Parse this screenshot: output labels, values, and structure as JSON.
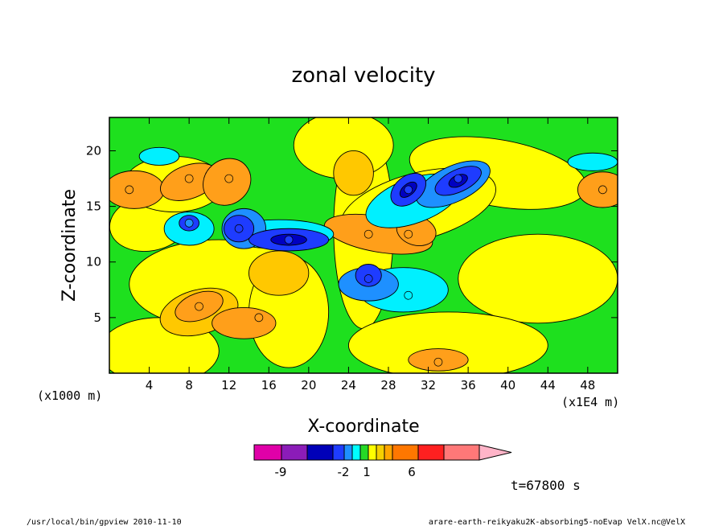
{
  "chart_data": {
    "type": "heatmap",
    "title": "zonal velocity",
    "xlabel": "X-coordinate",
    "ylabel": "Z-coordinate",
    "x_units": "(x1E4 m)",
    "y_units": "(x1000 m)",
    "x_ticks": [
      4,
      8,
      12,
      16,
      20,
      24,
      28,
      32,
      36,
      40,
      44,
      48
    ],
    "y_ticks": [
      5,
      10,
      15,
      20
    ],
    "xlim": [
      0,
      51
    ],
    "ylim": [
      0,
      23
    ],
    "colorbar": {
      "labels": [
        "-9",
        "-2",
        "1",
        "6"
      ],
      "colors": [
        "#e000a8",
        "#8b1cb8",
        "#0000b8",
        "#1e3cff",
        "#1e90ff",
        "#00ffff",
        "#26d926",
        "#ffff00",
        "#f5d000",
        "#ffa500",
        "#ff7700",
        "#ff2020",
        "#ff7878",
        "#ffb4c8"
      ]
    },
    "field_colors": {
      "green": "#1ee01e",
      "yellow": "#ffff00",
      "gold": "#ffc800",
      "orange": "#ff9f1a",
      "cyan": "#00f0ff",
      "lightblue": "#1e90ff",
      "blue": "#1e3cff",
      "navy": "#0000c0"
    },
    "features": [
      {
        "x": 2,
        "z": 16.5,
        "color": "orange"
      },
      {
        "x": 8,
        "z": 17.5,
        "color": "orange"
      },
      {
        "x": 12,
        "z": 17.5,
        "color": "orange"
      },
      {
        "x": 8,
        "z": 13.5,
        "color": "lightblue"
      },
      {
        "x": 13,
        "z": 13,
        "color": "blue"
      },
      {
        "x": 18,
        "z": 12,
        "color": "blue"
      },
      {
        "x": 26,
        "z": 12.5,
        "color": "orange"
      },
      {
        "x": 30,
        "z": 12.5,
        "color": "orange"
      },
      {
        "x": 30,
        "z": 16.5,
        "color": "blue"
      },
      {
        "x": 35,
        "z": 17.5,
        "color": "blue"
      },
      {
        "x": 49.5,
        "z": 16.5,
        "color": "orange"
      },
      {
        "x": 26,
        "z": 8.5,
        "color": "blue"
      },
      {
        "x": 30,
        "z": 7,
        "color": "cyan"
      },
      {
        "x": 9,
        "z": 6,
        "color": "orange"
      },
      {
        "x": 15,
        "z": 5,
        "color": "orange"
      },
      {
        "x": 33,
        "z": 1,
        "color": "orange"
      }
    ]
  },
  "time_label": "t=67800 s",
  "footer": {
    "left": "/usr/local/bin/gpview  2010-11-10",
    "right": "arare-earth-reikyaku2K-absorbing5-noEvap_VelX.nc@VelX"
  }
}
